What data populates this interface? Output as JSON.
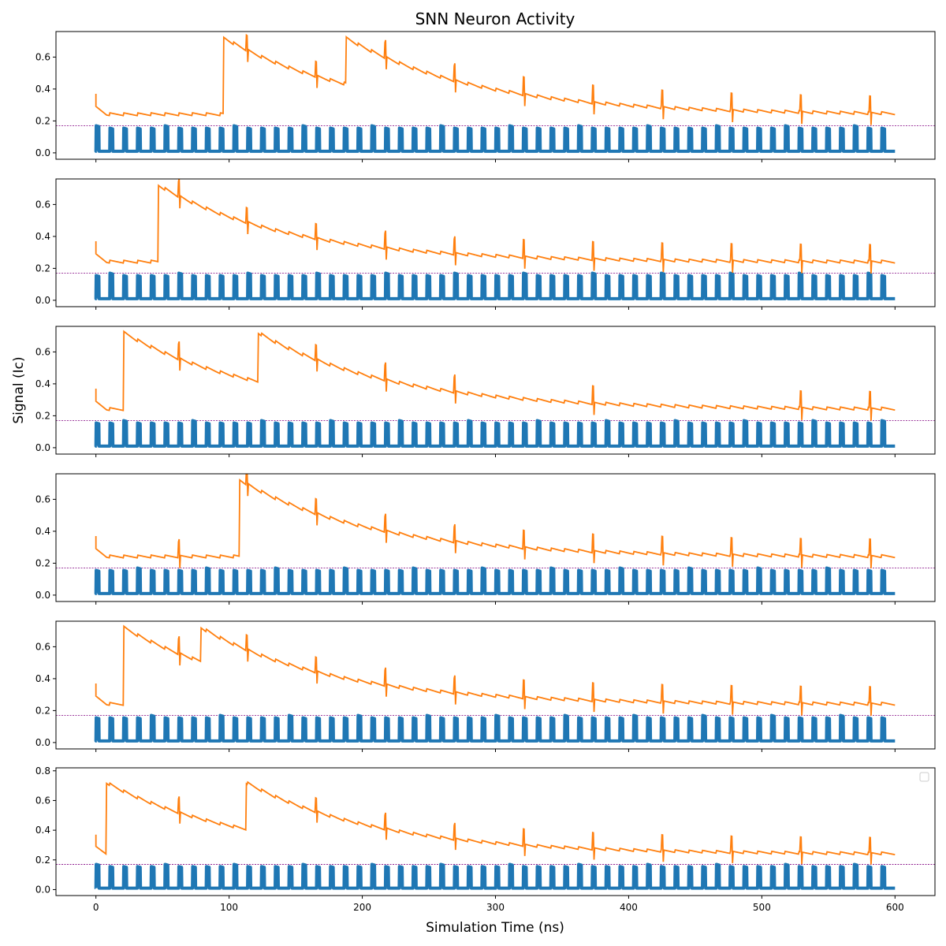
{
  "figure": {
    "title": "SNN Neuron Activity",
    "xlabel": "Simulation Time (ns)",
    "ylabel": "Signal (Ic)"
  },
  "colors": {
    "spike_train": "#1f77b4",
    "membrane": "#ff7f0e",
    "threshold": "#800080"
  },
  "chart_data": {
    "type": "line",
    "x_ticks": [
      0,
      100,
      200,
      300,
      400,
      500,
      600
    ],
    "xlim": [
      -30,
      630
    ],
    "threshold": 0.17,
    "spike_train": {
      "start": 0,
      "end": 600,
      "period": 10.35,
      "pulse_width": 2.2,
      "baseline": 0.01,
      "peak": 0.155
    },
    "panels": [
      {
        "ylim": [
          -0.04,
          0.76
        ],
        "y_ticks": [
          0.0,
          0.2,
          0.4,
          0.6
        ],
        "big_spikes": [
          96,
          188
        ],
        "small_spikes": [
          113,
          165,
          217,
          269,
          321,
          373,
          425,
          477,
          529,
          581
        ],
        "legend": false
      },
      {
        "ylim": [
          -0.04,
          0.76
        ],
        "y_ticks": [
          0.0,
          0.2,
          0.4,
          0.6
        ],
        "big_spikes": [
          47
        ],
        "small_spikes": [
          62,
          113,
          165,
          217,
          269,
          321,
          373,
          425,
          477,
          529,
          581
        ],
        "legend": false
      },
      {
        "ylim": [
          -0.04,
          0.76
        ],
        "y_ticks": [
          0.0,
          0.2,
          0.4,
          0.6
        ],
        "big_spikes": [
          21,
          122
        ],
        "small_spikes": [
          62,
          165,
          217,
          269,
          373,
          529,
          581
        ],
        "legend": false
      },
      {
        "ylim": [
          -0.04,
          0.76
        ],
        "y_ticks": [
          0.0,
          0.2,
          0.4,
          0.6
        ],
        "big_spikes": [
          108
        ],
        "small_spikes": [
          62,
          113,
          165,
          217,
          269,
          321,
          373,
          425,
          477,
          529,
          581
        ],
        "legend": false
      },
      {
        "ylim": [
          -0.04,
          0.76
        ],
        "y_ticks": [
          0.0,
          0.2,
          0.4,
          0.6
        ],
        "big_spikes": [
          21,
          79
        ],
        "small_spikes": [
          62,
          113,
          165,
          217,
          269,
          321,
          373,
          425,
          477,
          529,
          581
        ],
        "legend": false
      },
      {
        "ylim": [
          -0.04,
          0.82
        ],
        "y_ticks": [
          0.0,
          0.2,
          0.4,
          0.6,
          0.8
        ],
        "big_spikes": [
          8,
          113
        ],
        "small_spikes": [
          62,
          165,
          217,
          269,
          321,
          373,
          425,
          477,
          529,
          581
        ],
        "legend": true
      }
    ]
  }
}
